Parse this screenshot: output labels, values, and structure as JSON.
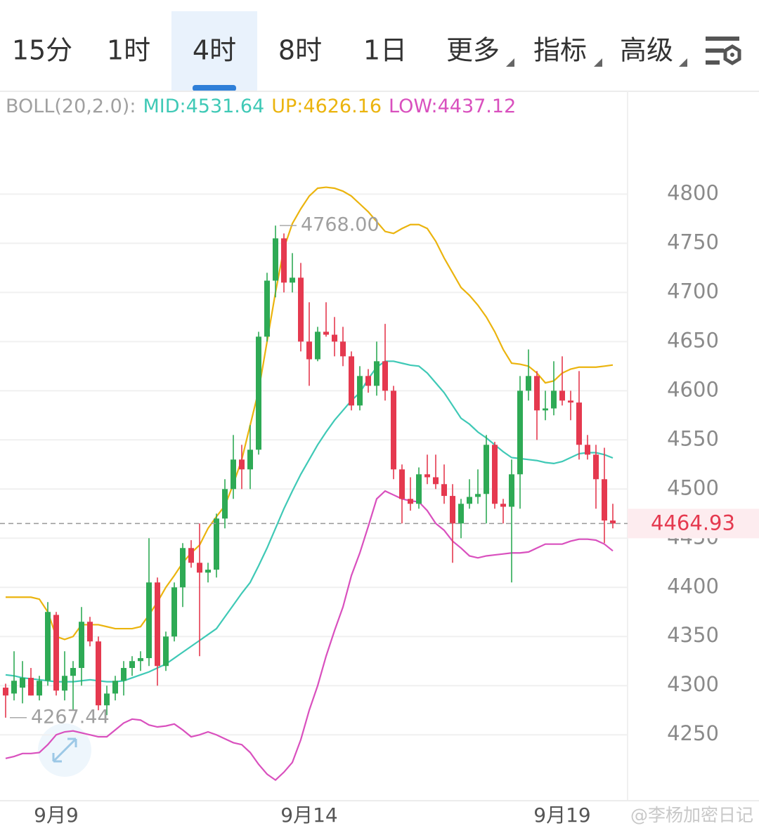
{
  "tabs": [
    "15分",
    "1时",
    "4时",
    "8时",
    "1日",
    "更多",
    "指标",
    "高级"
  ],
  "active_tab": 2,
  "watermark": "@李杨加密日记",
  "chart_data": {
    "type": "candlestick",
    "indicator_label": "BOLL(20,2.0):",
    "categories": [
      null,
      null,
      null,
      null,
      null,
      null,
      "9月9",
      null,
      null,
      null,
      null,
      null,
      null,
      null,
      null,
      null,
      null,
      null,
      null,
      null,
      null,
      null,
      null,
      null,
      null,
      null,
      null,
      null,
      null,
      null,
      null,
      null,
      null,
      null,
      null,
      null,
      "9月14",
      null,
      null,
      null,
      null,
      null,
      null,
      null,
      null,
      null,
      null,
      null,
      null,
      null,
      null,
      null,
      null,
      null,
      null,
      null,
      null,
      null,
      null,
      null,
      null,
      null,
      null,
      null,
      null,
      null,
      "9月19",
      null,
      null,
      null,
      null,
      null,
      null
    ],
    "open": [
      4298,
      4292,
      4298,
      4308,
      4290,
      4305,
      4372,
      4295,
      4310,
      4318,
      4365,
      4345,
      4280,
      4292,
      4305,
      4318,
      4325,
      4328,
      4405,
      4320,
      4350,
      4400,
      4440,
      4425,
      4415,
      4418,
      4470,
      4500,
      4530,
      4520,
      4540,
      4655,
      4712,
      4755,
      4710,
      4715,
      4650,
      4632,
      4660,
      4657,
      4650,
      4635,
      4585,
      4615,
      4605,
      4630,
      4600,
      4520,
      4490,
      4485,
      4515,
      4512,
      4505,
      4493,
      4465,
      4485,
      4492,
      4495,
      4545,
      4485,
      4482,
      4515,
      4600,
      4615,
      4580,
      4582,
      4600,
      4590,
      4588,
      4545,
      4535,
      4510,
      4468
    ],
    "high": [
      4302,
      4335,
      4325,
      4318,
      4310,
      4385,
      4375,
      4335,
      4325,
      4380,
      4370,
      4350,
      4300,
      4310,
      4325,
      4330,
      4335,
      4450,
      4410,
      4355,
      4405,
      4445,
      4448,
      4465,
      4425,
      4475,
      4510,
      4555,
      4545,
      4565,
      4660,
      4720,
      4768,
      4760,
      4740,
      4730,
      4690,
      4665,
      4690,
      4675,
      4665,
      4640,
      4625,
      4622,
      4650,
      4668,
      4605,
      4525,
      4512,
      4522,
      4535,
      4535,
      4525,
      4505,
      4490,
      4510,
      4520,
      4555,
      4548,
      4490,
      4530,
      4615,
      4642,
      4620,
      4600,
      4630,
      4635,
      4600,
      4620,
      4555,
      4545,
      4542,
      4485
    ],
    "low": [
      4267.44,
      4285,
      4282,
      4290,
      4285,
      4300,
      4290,
      4285,
      4275,
      4300,
      4340,
      4275,
      4270,
      4285,
      4290,
      4310,
      4315,
      4320,
      4300,
      4315,
      4345,
      4380,
      4420,
      4330,
      4405,
      4410,
      4460,
      4490,
      4500,
      4500,
      4535,
      4650,
      4695,
      4700,
      4700,
      4640,
      4605,
      4630,
      4655,
      4635,
      4625,
      4580,
      4580,
      4598,
      4595,
      4590,
      4510,
      4465,
      4478,
      4480,
      4505,
      4500,
      4485,
      4425,
      4450,
      4480,
      4485,
      4465,
      4480,
      4465,
      4405,
      4480,
      4590,
      4550,
      4570,
      4575,
      4585,
      4570,
      4530,
      4530,
      4480,
      4445,
      4460
    ],
    "close": [
      4290,
      4305,
      4308,
      4290,
      4305,
      4375,
      4295,
      4310,
      4318,
      4365,
      4345,
      4280,
      4292,
      4305,
      4318,
      4325,
      4328,
      4405,
      4320,
      4350,
      4400,
      4440,
      4425,
      4415,
      4418,
      4470,
      4500,
      4530,
      4520,
      4540,
      4655,
      4712,
      4755,
      4710,
      4715,
      4650,
      4632,
      4660,
      4657,
      4650,
      4635,
      4585,
      4615,
      4605,
      4630,
      4600,
      4520,
      4490,
      4485,
      4515,
      4512,
      4505,
      4493,
      4465,
      4485,
      4492,
      4495,
      4545,
      4485,
      4482,
      4515,
      4600,
      4615,
      4580,
      4582,
      4600,
      4590,
      4588,
      4545,
      4535,
      4510,
      4468,
      4464.93
    ],
    "up_color": "#2eaa55",
    "down_color": "#e5394f",
    "series": [
      {
        "label": "MID:4531.64",
        "color": "#3fc9b6",
        "values": [
          4311,
          4310,
          4308,
          4307,
          4306,
          4305,
          4304,
          4304,
          4304,
          4305,
          4306,
          4305,
          4304,
          4304,
          4305,
          4308,
          4311,
          4314,
          4318,
          4322,
          4328,
          4334,
          4340,
          4346,
          4352,
          4358,
          4370,
          4382,
          4394,
          4405,
          4422,
          4440,
          4460,
          4480,
          4498,
          4515,
          4530,
          4545,
          4558,
          4570,
          4580,
          4590,
          4598,
          4612,
          4624,
          4630,
          4630,
          4628,
          4626,
          4625,
          4618,
          4608,
          4598,
          4585,
          4572,
          4566,
          4558,
          4552,
          4545,
          4538,
          4532,
          4531,
          4530,
          4529,
          4527,
          4526,
          4528,
          4532,
          4536,
          4537,
          4537,
          4535,
          4531.64
        ]
      },
      {
        "label": "UP:4626.16",
        "color": "#ebb40e",
        "values": [
          4390,
          4390,
          4390,
          4390,
          4388,
          4375,
          4350,
          4347,
          4350,
          4362,
          4362,
          4362,
          4360,
          4358,
          4358,
          4358,
          4360,
          4372,
          4385,
          4400,
          4412,
          4425,
          4435,
          4443,
          4460,
          4472,
          4483,
          4505,
          4530,
          4565,
          4600,
          4650,
          4700,
          4745,
          4770,
          4785,
          4798,
          4806,
          4807,
          4806,
          4803,
          4798,
          4790,
          4782,
          4772,
          4762,
          4760,
          4765,
          4769,
          4769,
          4765,
          4752,
          4735,
          4720,
          4705,
          4697,
          4687,
          4675,
          4660,
          4642,
          4628,
          4627,
          4625,
          4618,
          4608,
          4610,
          4618,
          4622,
          4624,
          4624,
          4624,
          4625,
          4626.16
        ]
      },
      {
        "label": "LOW:4437.12",
        "color": "#d950be",
        "values": [
          4226,
          4228,
          4231,
          4231,
          4232,
          4240,
          4250,
          4253,
          4254,
          4252,
          4250,
          4248,
          4248,
          4255,
          4262,
          4266,
          4265,
          4260,
          4258,
          4259,
          4261,
          4255,
          4248,
          4250,
          4253,
          4250,
          4246,
          4242,
          4240,
          4232,
          4220,
          4210,
          4204,
          4212,
          4222,
          4245,
          4275,
          4300,
          4330,
          4356,
          4380,
          4412,
          4435,
          4462,
          4490,
          4498,
          4494,
          4490,
          4488,
          4487,
          4478,
          4465,
          4458,
          4447,
          4440,
          4432,
          4430,
          4432,
          4433,
          4434,
          4435,
          4435,
          4436,
          4440,
          4444,
          4444,
          4444,
          4447,
          4449,
          4449,
          4448,
          4444,
          4437.12
        ]
      }
    ],
    "annotations": [
      {
        "value": 4768,
        "label": "4768.00"
      },
      {
        "value": 4267.44,
        "label": "4267.44"
      }
    ],
    "last_price": 4464.93,
    "ylim": [
      4183,
      4876
    ],
    "yticks": [
      4250,
      4300,
      4350,
      4400,
      4450,
      4500,
      4550,
      4600,
      4650,
      4700,
      4750,
      4800
    ],
    "grid": true
  }
}
